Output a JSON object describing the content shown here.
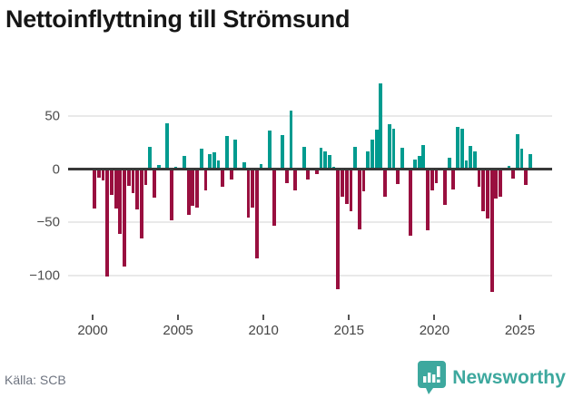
{
  "title": "Nettoinflyttning till Strömsund",
  "footer": {
    "source_label": "Källa: SCB",
    "brand": "Newsworthy"
  },
  "colors": {
    "positive_bar": "#009b8f",
    "negative_bar": "#990f3f",
    "brand_teal": "#3da89e",
    "grid": "#e9e9e9",
    "zero_line": "#383838"
  },
  "chart_data": {
    "type": "bar",
    "title": "Nettoinflyttning till Strömsund",
    "frequency": "quarterly",
    "start_period": "2000Q1",
    "end_period": "2025Q3",
    "ylim": [
      -125,
      90
    ],
    "grid": true,
    "y_ticks": [
      {
        "value": 50,
        "label": "50"
      },
      {
        "value": 0,
        "label": "0"
      },
      {
        "value": -50,
        "label": "−50"
      },
      {
        "value": -100,
        "label": "−100"
      }
    ],
    "x_ticks": [
      {
        "year": 2000,
        "label": "2000"
      },
      {
        "year": 2005,
        "label": "2005"
      },
      {
        "year": 2010,
        "label": "2010"
      },
      {
        "year": 2015,
        "label": "2015"
      },
      {
        "year": 2020,
        "label": "2020"
      },
      {
        "year": 2025,
        "label": "2025"
      }
    ],
    "values": [
      -37,
      -8,
      -11,
      -101,
      -24,
      -37,
      -61,
      -92,
      -16,
      -23,
      -38,
      -65,
      -15,
      21,
      -27,
      4,
      0,
      43,
      -48,
      2,
      0,
      12,
      -43,
      -35,
      -36,
      19,
      -20,
      14,
      16,
      8,
      -17,
      31,
      -10,
      28,
      0,
      6,
      -46,
      -36,
      -84,
      5,
      0,
      36,
      -53,
      0,
      32,
      -13,
      55,
      -20,
      0,
      21,
      -10,
      0,
      -5,
      20,
      17,
      13,
      2,
      -113,
      -26,
      -33,
      -40,
      21,
      -57,
      -21,
      17,
      28,
      37,
      81,
      -26,
      42,
      38,
      -14,
      20,
      0,
      -63,
      9,
      12,
      23,
      -58,
      -20,
      -13,
      0,
      -34,
      11,
      -19,
      40,
      38,
      8,
      22,
      17,
      -17,
      -40,
      -47,
      -116,
      -28,
      -26,
      0,
      3,
      -9,
      33,
      19,
      -15,
      14
    ]
  }
}
